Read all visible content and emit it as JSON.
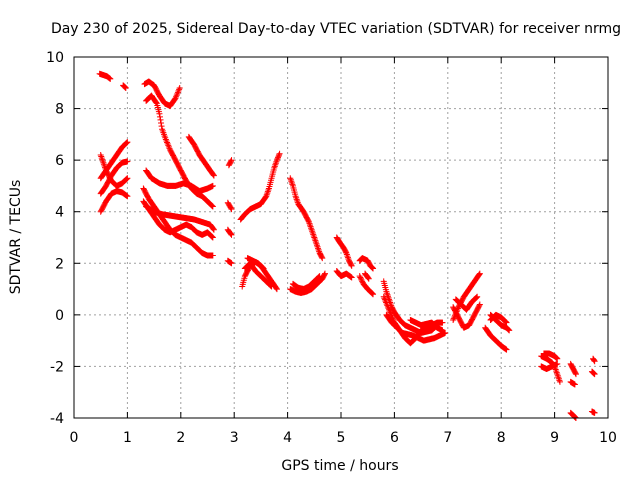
{
  "chart_data": {
    "type": "scatter",
    "title": "Day 230 of 2025, Sidereal Day-to-day VTEC variation (SDTVAR) for receiver nrmg",
    "xlabel": "GPS time / hours",
    "ylabel": "SDTVAR / TECUs",
    "xlim": [
      0,
      10
    ],
    "ylim": [
      -4,
      10
    ],
    "xticks": [
      "0",
      "1",
      "2",
      "3",
      "4",
      "5",
      "6",
      "7",
      "8",
      "9",
      "10"
    ],
    "yticks": [
      "-4",
      "-2",
      "0",
      "2",
      "4",
      "6",
      "8",
      "10"
    ],
    "grid": true,
    "marker": "+",
    "color": "#ff0000",
    "segments": [
      [
        [
          0.48,
          9.35
        ],
        [
          0.55,
          9.3
        ],
        [
          0.62,
          9.25
        ],
        [
          0.68,
          9.15
        ]
      ],
      [
        [
          0.92,
          8.9
        ],
        [
          0.97,
          8.8
        ]
      ],
      [
        [
          0.5,
          4.0
        ],
        [
          0.6,
          4.4
        ],
        [
          0.7,
          4.7
        ],
        [
          0.8,
          4.8
        ],
        [
          0.9,
          4.75
        ],
        [
          1.0,
          4.6
        ]
      ],
      [
        [
          0.5,
          4.7
        ],
        [
          0.6,
          5.0
        ],
        [
          0.7,
          5.4
        ],
        [
          0.8,
          5.7
        ],
        [
          0.9,
          5.9
        ],
        [
          1.0,
          5.95
        ]
      ],
      [
        [
          0.5,
          5.3
        ],
        [
          0.6,
          5.6
        ],
        [
          0.7,
          5.9
        ],
        [
          0.8,
          6.2
        ],
        [
          0.9,
          6.5
        ],
        [
          1.0,
          6.7
        ]
      ],
      [
        [
          0.5,
          6.2
        ],
        [
          0.55,
          5.9
        ],
        [
          0.6,
          5.6
        ],
        [
          0.7,
          5.2
        ],
        [
          0.8,
          5.0
        ],
        [
          0.9,
          5.1
        ],
        [
          1.0,
          5.3
        ]
      ],
      [
        [
          1.32,
          8.95
        ],
        [
          1.4,
          9.05
        ],
        [
          1.5,
          8.9
        ],
        [
          1.6,
          8.5
        ],
        [
          1.7,
          8.2
        ],
        [
          1.8,
          8.1
        ],
        [
          1.9,
          8.4
        ],
        [
          1.98,
          8.8
        ]
      ],
      [
        [
          1.35,
          8.3
        ],
        [
          1.45,
          8.5
        ],
        [
          1.55,
          8.2
        ],
        [
          1.6,
          7.8
        ],
        [
          1.65,
          7.2
        ],
        [
          1.72,
          6.8
        ],
        [
          1.8,
          6.4
        ],
        [
          1.9,
          6.0
        ],
        [
          2.0,
          5.6
        ],
        [
          2.1,
          5.2
        ],
        [
          2.2,
          4.9
        ],
        [
          2.3,
          4.7
        ],
        [
          2.4,
          4.6
        ],
        [
          2.5,
          4.4
        ],
        [
          2.6,
          4.2
        ]
      ],
      [
        [
          2.15,
          6.9
        ],
        [
          2.25,
          6.6
        ],
        [
          2.35,
          6.2
        ],
        [
          2.45,
          5.9
        ],
        [
          2.55,
          5.6
        ],
        [
          2.62,
          5.4
        ]
      ],
      [
        [
          1.3,
          4.9
        ],
        [
          1.4,
          4.5
        ],
        [
          1.5,
          4.2
        ],
        [
          1.6,
          3.9
        ],
        [
          1.7,
          3.6
        ],
        [
          1.8,
          3.3
        ],
        [
          1.9,
          3.1
        ],
        [
          2.0,
          3.0
        ],
        [
          2.1,
          2.9
        ],
        [
          2.2,
          2.8
        ],
        [
          2.3,
          2.6
        ],
        [
          2.4,
          2.4
        ],
        [
          2.5,
          2.3
        ],
        [
          2.6,
          2.3
        ]
      ],
      [
        [
          1.3,
          4.4
        ],
        [
          1.4,
          4.1
        ],
        [
          1.5,
          3.8
        ],
        [
          1.6,
          3.5
        ],
        [
          1.7,
          3.3
        ],
        [
          1.8,
          3.2
        ],
        [
          1.9,
          3.3
        ],
        [
          2.0,
          3.4
        ],
        [
          2.1,
          3.5
        ],
        [
          2.2,
          3.4
        ],
        [
          2.3,
          3.2
        ],
        [
          2.4,
          3.1
        ],
        [
          2.5,
          3.2
        ],
        [
          2.6,
          3.0
        ]
      ],
      [
        [
          1.35,
          4.2
        ],
        [
          1.5,
          4.0
        ],
        [
          1.65,
          3.9
        ],
        [
          1.8,
          3.85
        ],
        [
          1.95,
          3.8
        ],
        [
          2.1,
          3.75
        ],
        [
          2.25,
          3.7
        ],
        [
          2.4,
          3.6
        ],
        [
          2.55,
          3.5
        ],
        [
          2.62,
          3.3
        ]
      ],
      [
        [
          1.35,
          5.6
        ],
        [
          1.45,
          5.3
        ],
        [
          1.6,
          5.1
        ],
        [
          1.75,
          5.0
        ],
        [
          1.9,
          5.0
        ],
        [
          2.05,
          5.1
        ],
        [
          2.2,
          5.0
        ],
        [
          2.35,
          4.8
        ],
        [
          2.5,
          4.9
        ],
        [
          2.6,
          5.0
        ]
      ],
      [
        [
          2.9,
          5.8
        ],
        [
          2.95,
          6.0
        ]
      ],
      [
        [
          2.88,
          4.35
        ],
        [
          2.95,
          4.1
        ]
      ],
      [
        [
          2.88,
          3.3
        ],
        [
          2.95,
          3.1
        ]
      ],
      [
        [
          2.88,
          2.1
        ],
        [
          2.95,
          2.0
        ]
      ],
      [
        [
          3.12,
          3.7
        ],
        [
          3.2,
          3.9
        ],
        [
          3.3,
          4.1
        ],
        [
          3.4,
          4.2
        ],
        [
          3.5,
          4.3
        ],
        [
          3.6,
          4.6
        ],
        [
          3.65,
          4.9
        ],
        [
          3.7,
          5.3
        ],
        [
          3.75,
          5.7
        ],
        [
          3.8,
          6.0
        ],
        [
          3.85,
          6.25
        ]
      ],
      [
        [
          3.15,
          1.1
        ],
        [
          3.2,
          1.5
        ],
        [
          3.3,
          1.9
        ],
        [
          3.4,
          2.05
        ],
        [
          3.5,
          1.9
        ],
        [
          3.6,
          1.6
        ],
        [
          3.7,
          1.3
        ],
        [
          3.8,
          1.0
        ]
      ],
      [
        [
          3.2,
          1.8
        ],
        [
          3.3,
          2.0
        ],
        [
          3.4,
          1.7
        ],
        [
          3.5,
          1.5
        ],
        [
          3.6,
          1.3
        ],
        [
          3.7,
          1.1
        ]
      ],
      [
        [
          3.25,
          2.2
        ],
        [
          3.35,
          2.1
        ],
        [
          3.45,
          2.0
        ],
        [
          3.55,
          1.8
        ]
      ],
      [
        [
          4.05,
          5.3
        ],
        [
          4.1,
          5.0
        ],
        [
          4.15,
          4.6
        ],
        [
          4.2,
          4.3
        ],
        [
          4.3,
          4.0
        ],
        [
          4.4,
          3.6
        ],
        [
          4.45,
          3.3
        ],
        [
          4.5,
          3.0
        ],
        [
          4.55,
          2.7
        ],
        [
          4.6,
          2.4
        ],
        [
          4.65,
          2.2
        ]
      ],
      [
        [
          4.05,
          1.0
        ],
        [
          4.15,
          0.9
        ],
        [
          4.25,
          0.85
        ],
        [
          4.35,
          0.9
        ],
        [
          4.45,
          1.0
        ],
        [
          4.55,
          1.2
        ],
        [
          4.65,
          1.4
        ],
        [
          4.7,
          1.6
        ]
      ],
      [
        [
          4.1,
          1.2
        ],
        [
          4.2,
          1.05
        ],
        [
          4.3,
          1.0
        ],
        [
          4.4,
          1.1
        ],
        [
          4.5,
          1.3
        ],
        [
          4.6,
          1.5
        ]
      ],
      [
        [
          4.92,
          3.0
        ],
        [
          4.98,
          2.8
        ],
        [
          5.05,
          2.6
        ],
        [
          5.1,
          2.4
        ],
        [
          5.15,
          2.1
        ],
        [
          5.2,
          1.9
        ]
      ],
      [
        [
          4.92,
          1.7
        ],
        [
          5.0,
          1.5
        ],
        [
          5.1,
          1.6
        ],
        [
          5.2,
          1.45
        ]
      ],
      [
        [
          5.35,
          2.1
        ],
        [
          5.4,
          2.2
        ],
        [
          5.5,
          2.1
        ],
        [
          5.55,
          1.9
        ],
        [
          5.6,
          1.8
        ]
      ],
      [
        [
          5.35,
          1.5
        ],
        [
          5.42,
          1.2
        ],
        [
          5.5,
          1.0
        ],
        [
          5.6,
          0.8
        ]
      ],
      [
        [
          5.45,
          1.6
        ],
        [
          5.52,
          1.4
        ]
      ],
      [
        [
          5.8,
          1.3
        ],
        [
          5.85,
          0.9
        ],
        [
          5.9,
          0.6
        ],
        [
          5.95,
          0.3
        ],
        [
          6.0,
          0.1
        ],
        [
          6.1,
          -0.2
        ],
        [
          6.2,
          -0.4
        ],
        [
          6.3,
          -0.5
        ],
        [
          6.4,
          -0.6
        ],
        [
          6.5,
          -0.7
        ],
        [
          6.6,
          -0.65
        ],
        [
          6.7,
          -0.6
        ],
        [
          6.8,
          -0.4
        ]
      ],
      [
        [
          5.8,
          0.7
        ],
        [
          5.9,
          0.2
        ],
        [
          6.0,
          -0.3
        ],
        [
          6.1,
          -0.6
        ],
        [
          6.2,
          -0.9
        ],
        [
          6.3,
          -1.1
        ],
        [
          6.4,
          -0.9
        ],
        [
          6.5,
          -0.6
        ],
        [
          6.6,
          -0.5
        ],
        [
          6.7,
          -0.4
        ],
        [
          6.8,
          -0.3
        ],
        [
          6.9,
          -0.3
        ]
      ],
      [
        [
          5.85,
          0.0
        ],
        [
          5.95,
          -0.3
        ],
        [
          6.05,
          -0.5
        ],
        [
          6.15,
          -0.7
        ],
        [
          6.25,
          -0.75
        ],
        [
          6.35,
          -0.8
        ],
        [
          6.45,
          -0.9
        ],
        [
          6.55,
          -1.0
        ],
        [
          6.65,
          -0.95
        ],
        [
          6.75,
          -0.9
        ],
        [
          6.85,
          -0.8
        ],
        [
          6.95,
          -0.7
        ]
      ],
      [
        [
          6.3,
          -0.2
        ],
        [
          6.4,
          -0.3
        ],
        [
          6.5,
          -0.4
        ],
        [
          6.6,
          -0.35
        ],
        [
          6.7,
          -0.3
        ],
        [
          6.8,
          -0.5
        ],
        [
          6.9,
          -0.6
        ]
      ],
      [
        [
          7.1,
          -0.2
        ],
        [
          7.2,
          0.3
        ],
        [
          7.3,
          0.7
        ],
        [
          7.4,
          1.0
        ],
        [
          7.5,
          1.3
        ],
        [
          7.6,
          1.6
        ]
      ],
      [
        [
          7.1,
          0.3
        ],
        [
          7.2,
          -0.1
        ],
        [
          7.3,
          -0.5
        ],
        [
          7.4,
          -0.4
        ],
        [
          7.5,
          0.0
        ],
        [
          7.6,
          0.4
        ]
      ],
      [
        [
          7.15,
          0.6
        ],
        [
          7.25,
          0.4
        ],
        [
          7.35,
          0.2
        ],
        [
          7.45,
          0.5
        ],
        [
          7.55,
          0.7
        ]
      ],
      [
        [
          7.7,
          -0.5
        ],
        [
          7.8,
          -0.8
        ],
        [
          7.9,
          -1.0
        ],
        [
          8.0,
          -1.2
        ],
        [
          8.1,
          -1.35
        ]
      ],
      [
        [
          7.8,
          0.0
        ],
        [
          7.9,
          -0.2
        ],
        [
          8.0,
          -0.4
        ],
        [
          8.1,
          -0.5
        ],
        [
          8.15,
          -0.6
        ]
      ],
      [
        [
          7.8,
          -0.2
        ],
        [
          7.9,
          0.0
        ],
        [
          8.0,
          -0.1
        ],
        [
          8.1,
          -0.3
        ]
      ],
      [
        [
          8.75,
          -1.6
        ],
        [
          8.85,
          -1.7
        ],
        [
          8.95,
          -1.85
        ],
        [
          9.0,
          -2.0
        ],
        [
          9.05,
          -2.3
        ],
        [
          9.1,
          -2.6
        ]
      ],
      [
        [
          8.75,
          -2.0
        ],
        [
          8.85,
          -2.1
        ],
        [
          8.95,
          -2.0
        ],
        [
          9.05,
          -1.9
        ]
      ],
      [
        [
          8.8,
          -1.5
        ],
        [
          8.9,
          -1.5
        ],
        [
          9.0,
          -1.6
        ],
        [
          9.05,
          -1.7
        ]
      ],
      [
        [
          9.3,
          -1.9
        ],
        [
          9.35,
          -2.1
        ],
        [
          9.4,
          -2.3
        ]
      ],
      [
        [
          9.3,
          -2.6
        ],
        [
          9.38,
          -2.7
        ]
      ],
      [
        [
          9.3,
          -3.8
        ],
        [
          9.35,
          -3.9
        ],
        [
          9.4,
          -4.0
        ]
      ],
      [
        [
          9.72,
          -1.7
        ],
        [
          9.75,
          -1.8
        ]
      ],
      [
        [
          9.7,
          -2.2
        ],
        [
          9.75,
          -2.3
        ]
      ],
      [
        [
          9.7,
          -3.75
        ],
        [
          9.75,
          -3.8
        ]
      ]
    ]
  }
}
